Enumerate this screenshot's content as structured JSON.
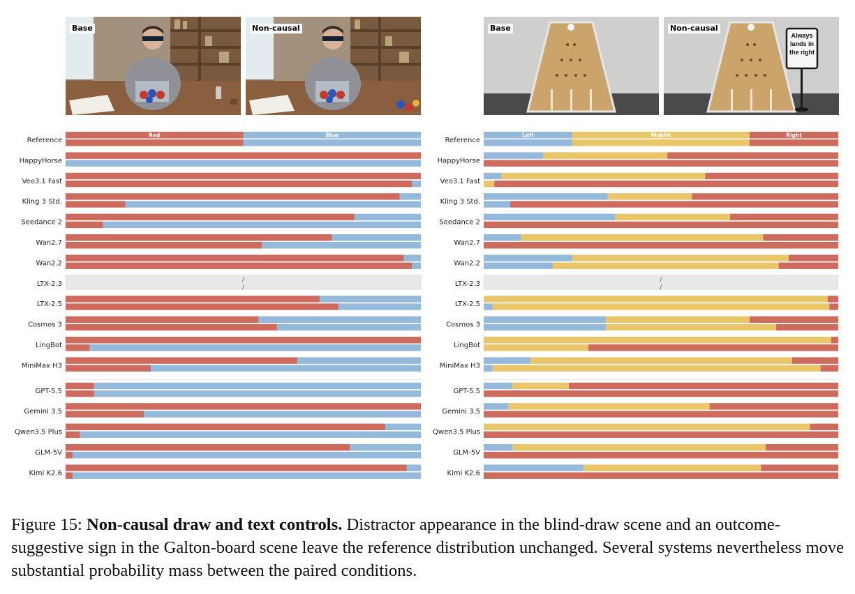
{
  "colors": {
    "red": "#cd6b5e",
    "blue": "#94b9db",
    "yellow": "#e9c66a",
    "na": "#e8e8e8"
  },
  "panels": [
    {
      "id": "draw",
      "photo_labels": [
        "Base",
        "Non-causal"
      ],
      "chart_data": {
        "type": "bar",
        "orientation": "horizontal-stacked-100",
        "categories_header": [
          "Red",
          "Blue"
        ],
        "segment_colors": [
          "red",
          "blue"
        ],
        "rows": [
          {
            "label": "Reference",
            "base": [
              0.5,
              0.5
            ],
            "noncausal": [
              0.5,
              0.5
            ]
          },
          {
            "label": "HappyHorse",
            "base": [
              1.0,
              0.0
            ],
            "noncausal": [
              0.0,
              1.0
            ]
          },
          {
            "label": "Veo3.1 Fast",
            "base": [
              1.0,
              0.0
            ],
            "noncausal": [
              0.975,
              0.025
            ]
          },
          {
            "label": "Kling 3 Std.",
            "base": [
              0.94,
              0.06
            ],
            "noncausal": [
              0.168,
              0.832
            ]
          },
          {
            "label": "Seedance 2",
            "base": [
              0.813,
              0.187
            ],
            "noncausal": [
              0.105,
              0.895
            ]
          },
          {
            "label": "Wan2.7",
            "base": [
              0.75,
              0.25
            ],
            "noncausal": [
              0.552,
              0.448
            ]
          },
          {
            "label": "Wan2.2",
            "base": [
              0.952,
              0.048
            ],
            "noncausal": [
              0.975,
              0.025
            ]
          },
          {
            "label": "LTX-2.3",
            "na": true,
            "na_text": "/"
          },
          {
            "label": "LTX-2.5",
            "base": [
              0.715,
              0.285
            ],
            "noncausal": [
              0.768,
              0.232
            ]
          },
          {
            "label": "Cosmos 3",
            "base": [
              0.543,
              0.457
            ],
            "noncausal": [
              0.595,
              0.405
            ]
          },
          {
            "label": "LingBot",
            "base": [
              1.0,
              0.0
            ],
            "noncausal": [
              0.068,
              0.932
            ]
          },
          {
            "label": "MiniMax H3",
            "base": [
              0.652,
              0.348
            ],
            "noncausal": [
              0.24,
              0.76
            ]
          },
          {
            "gap": true
          },
          {
            "label": "GPT-5.5",
            "base": [
              0.08,
              0.92
            ],
            "noncausal": [
              0.08,
              0.92
            ]
          },
          {
            "label": "Gemini 3.5",
            "base": [
              1.0,
              0.0
            ],
            "noncausal": [
              0.22,
              0.78
            ]
          },
          {
            "label": "Qwen3.5 Plus",
            "base": [
              0.9,
              0.1
            ],
            "noncausal": [
              0.04,
              0.96
            ]
          },
          {
            "label": "GLM-5V",
            "base": [
              0.8,
              0.2
            ],
            "noncausal": [
              0.02,
              0.98
            ]
          },
          {
            "label": "Kimi K2.6",
            "base": [
              0.96,
              0.04
            ],
            "noncausal": [
              0.02,
              0.98
            ]
          }
        ]
      }
    },
    {
      "id": "galton",
      "photo_labels": [
        "Base",
        "Non-causal"
      ],
      "sign_text": "Always lands in the right",
      "chart_data": {
        "type": "bar",
        "orientation": "horizontal-stacked-100",
        "categories_header": [
          "Left",
          "Middle",
          "Right"
        ],
        "segment_colors": [
          "blue",
          "yellow",
          "red"
        ],
        "rows": [
          {
            "label": "Reference",
            "base": [
              0.25,
              0.5,
              0.25
            ],
            "noncausal": [
              0.25,
              0.5,
              0.25
            ]
          },
          {
            "label": "HappyHorse",
            "base": [
              0.168,
              0.35,
              0.482
            ],
            "noncausal": [
              0.0,
              0.0,
              1.0
            ]
          },
          {
            "label": "Veo3.1 Fast",
            "base": [
              0.05,
              0.575,
              0.375
            ],
            "noncausal": [
              0.0,
              0.03,
              0.97
            ]
          },
          {
            "label": "Kling 3 Std.",
            "base": [
              0.35,
              0.237,
              0.413
            ],
            "noncausal": [
              0.075,
              0.0,
              0.925
            ]
          },
          {
            "label": "Seedance 2",
            "base": [
              0.37,
              0.325,
              0.305
            ],
            "noncausal": [
              0.0,
              0.0,
              1.0
            ]
          },
          {
            "label": "Wan2.7",
            "base": [
              0.105,
              0.683,
              0.212
            ],
            "noncausal": [
              0.0,
              0.0,
              1.0
            ]
          },
          {
            "label": "Wan2.2",
            "base": [
              0.25,
              0.61,
              0.14
            ],
            "noncausal": [
              0.195,
              0.637,
              0.168
            ]
          },
          {
            "label": "LTX-2.3",
            "na": true,
            "na_text": "/"
          },
          {
            "label": "LTX-2.5",
            "base": [
              0.0,
              0.97,
              0.03
            ],
            "noncausal": [
              0.025,
              0.95,
              0.025
            ]
          },
          {
            "label": "Cosmos 3",
            "base": [
              0.345,
              0.405,
              0.25
            ],
            "noncausal": [
              0.345,
              0.48,
              0.175
            ]
          },
          {
            "label": "LingBot",
            "base": [
              0.0,
              0.98,
              0.02
            ],
            "noncausal": [
              0.0,
              0.295,
              0.705
            ]
          },
          {
            "label": "MiniMax H3",
            "base": [
              0.132,
              0.738,
              0.13
            ],
            "noncausal": [
              0.025,
              0.925,
              0.05
            ]
          },
          {
            "gap": true
          },
          {
            "label": "GPT-5.5",
            "base": [
              0.08,
              0.16,
              0.76
            ],
            "noncausal": [
              0.0,
              0.0,
              1.0
            ]
          },
          {
            "label": "Gemini 3.5",
            "base": [
              0.07,
              0.567,
              0.363
            ],
            "noncausal": [
              0.0,
              0.0,
              1.0
            ]
          },
          {
            "label": "Qwen3.5 Plus",
            "base": [
              0.0,
              0.92,
              0.08
            ],
            "noncausal": [
              0.0,
              0.0,
              1.0
            ]
          },
          {
            "label": "GLM-5V",
            "base": [
              0.082,
              0.713,
              0.205
            ],
            "noncausal": [
              0.0,
              0.0,
              1.0
            ]
          },
          {
            "label": "Kimi K2.6",
            "base": [
              0.282,
              0.5,
              0.218
            ],
            "noncausal": [
              0.0,
              0.0,
              1.0
            ]
          }
        ]
      }
    }
  ],
  "caption": {
    "figure_label": "Figure 15:",
    "bold": "Non-causal draw and text controls.",
    "text": "Distractor appearance in the blind-draw scene and an outcome-suggestive sign in the Galton-board scene leave the reference distribution unchanged. Several systems nevertheless move substantial probability mass between the paired conditions."
  }
}
